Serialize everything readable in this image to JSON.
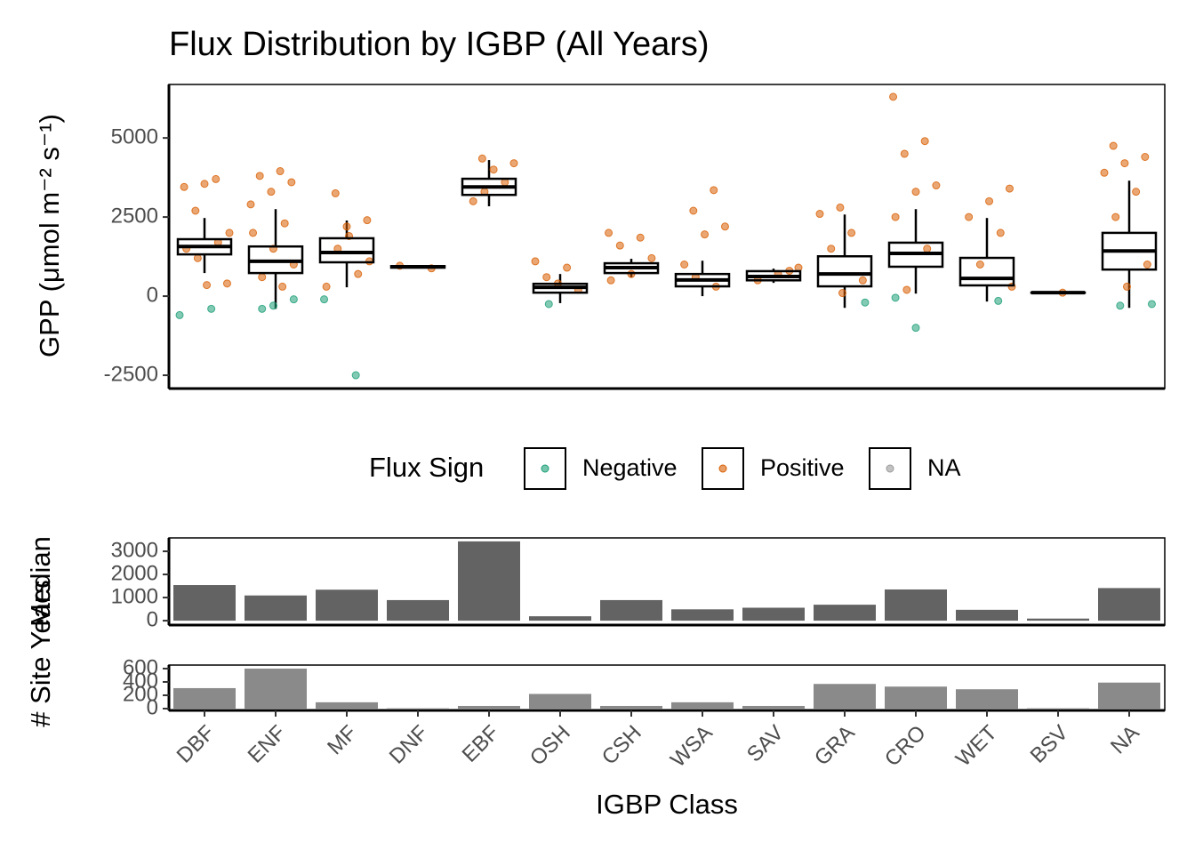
{
  "chart_data": [
    {
      "type": "box",
      "title": "Flux Distribution by IGBP (All Years)",
      "ylabel": "GPP (μmol m⁻² s⁻¹)",
      "ylim": [
        -2920,
        6690
      ],
      "yticks": [
        -2500,
        0,
        2500,
        5000
      ],
      "legend_title": "Flux Sign",
      "boxes": [
        {
          "whisker_low": 730,
          "q1": 1320,
          "median": 1570,
          "q3": 1800,
          "whisker_high": 2470
        },
        {
          "whisker_low": -400,
          "q1": 730,
          "median": 1100,
          "q3": 1570,
          "whisker_high": 2750
        },
        {
          "whisker_low": 280,
          "q1": 1070,
          "median": 1380,
          "q3": 1830,
          "whisker_high": 2390
        },
        {
          "whisker_low": 880,
          "q1": 900,
          "median": 930,
          "q3": 950,
          "whisker_high": 960
        },
        {
          "whisker_low": 2840,
          "q1": 3200,
          "median": 3450,
          "q3": 3710,
          "whisker_high": 4300
        },
        {
          "whisker_low": -220,
          "q1": 110,
          "median": 280,
          "q3": 390,
          "whisker_high": 700
        },
        {
          "whisker_low": 590,
          "q1": 730,
          "median": 900,
          "q3": 1040,
          "whisker_high": 1180
        },
        {
          "whisker_low": 0,
          "q1": 310,
          "median": 510,
          "q3": 700,
          "whisker_high": 1120
        },
        {
          "whisker_low": 420,
          "q1": 500,
          "median": 620,
          "q3": 790,
          "whisker_high": 870
        },
        {
          "whisker_low": -370,
          "q1": 310,
          "median": 700,
          "q3": 1260,
          "whisker_high": 2580
        },
        {
          "whisker_low": 80,
          "q1": 930,
          "median": 1350,
          "q3": 1690,
          "whisker_high": 2750
        },
        {
          "whisker_low": -170,
          "q1": 340,
          "median": 560,
          "q3": 1210,
          "whisker_high": 2470
        },
        {
          "whisker_low": 100,
          "q1": 105,
          "median": 110,
          "q3": 115,
          "whisker_high": 120
        },
        {
          "whisker_low": -370,
          "q1": 840,
          "median": 1430,
          "q3": 2000,
          "whisker_high": 3650
        }
      ],
      "series": [
        {
          "name": "Negative",
          "color": "#1b9e77",
          "x": [
            "DBF",
            "DBF",
            "ENF",
            "ENF",
            "ENF",
            "MF",
            "MF",
            "OSH",
            "GRA",
            "CRO",
            "CRO",
            "WET",
            "NA",
            "NA"
          ],
          "values": [
            -600,
            -400,
            -400,
            -100,
            -300,
            -100,
            -2500,
            -250,
            -200,
            -1000,
            -50,
            -150,
            -300,
            -250
          ]
        },
        {
          "name": "Positive",
          "color": "#d95f02",
          "x": [
            "DBF",
            "DBF",
            "DBF",
            "DBF",
            "DBF",
            "DBF",
            "DBF",
            "DBF",
            "DBF",
            "DBF",
            "ENF",
            "ENF",
            "ENF",
            "ENF",
            "ENF",
            "ENF",
            "ENF",
            "ENF",
            "ENF",
            "ENF",
            "ENF",
            "MF",
            "MF",
            "MF",
            "MF",
            "MF",
            "MF",
            "MF",
            "MF",
            "DNF",
            "DNF",
            "EBF",
            "EBF",
            "EBF",
            "EBF",
            "EBF",
            "EBF",
            "OSH",
            "OSH",
            "OSH",
            "OSH",
            "OSH",
            "CSH",
            "CSH",
            "CSH",
            "CSH",
            "CSH",
            "CSH",
            "WSA",
            "WSA",
            "WSA",
            "WSA",
            "WSA",
            "WSA",
            "WSA",
            "SAV",
            "SAV",
            "SAV",
            "SAV",
            "GRA",
            "GRA",
            "GRA",
            "GRA",
            "GRA",
            "GRA",
            "CRO",
            "CRO",
            "CRO",
            "CRO",
            "CRO",
            "CRO",
            "CRO",
            "CRO",
            "WET",
            "WET",
            "WET",
            "WET",
            "WET",
            "WET",
            "BSV",
            "NA",
            "NA",
            "NA",
            "NA",
            "NA",
            "NA",
            "NA",
            "NA"
          ],
          "values": [
            3550,
            3450,
            3700,
            2700,
            400,
            350,
            1500,
            1700,
            1200,
            2000,
            3950,
            3800,
            3600,
            3300,
            2900,
            300,
            600,
            1000,
            1500,
            2000,
            2300,
            3250,
            2400,
            2200,
            300,
            700,
            1500,
            1100,
            1900,
            960,
            880,
            4350,
            4200,
            4000,
            3000,
            3600,
            3300,
            1100,
            900,
            600,
            200,
            400,
            2000,
            1850,
            1600,
            1200,
            700,
            500,
            3350,
            2700,
            2200,
            1950,
            1000,
            300,
            600,
            900,
            700,
            500,
            800,
            2800,
            2600,
            2000,
            1500,
            500,
            100,
            6300,
            4900,
            4500,
            3500,
            3300,
            2500,
            1500,
            200,
            3400,
            3000,
            2500,
            2000,
            1000,
            300,
            110,
            4750,
            4400,
            4200,
            3900,
            3300,
            2500,
            1000,
            300
          ]
        },
        {
          "name": "NA",
          "color": "#999999",
          "x": [],
          "values": []
        }
      ]
    },
    {
      "type": "bar",
      "ylabel": "Median",
      "color": "#636363",
      "ylim": [
        -190,
        3580
      ],
      "yticks": [
        0,
        1000,
        2000,
        3000
      ],
      "values": [
        1540,
        1090,
        1340,
        890,
        3430,
        190,
        890,
        490,
        560,
        690,
        1350,
        470,
        90,
        1410
      ]
    },
    {
      "type": "bar",
      "ylabel": "# Site Years",
      "xlabel": "IGBP Class",
      "color": "#8a8a8a",
      "ylim": [
        -27,
        653
      ],
      "yticks": [
        0,
        200,
        400,
        600
      ],
      "categories": [
        "DBF",
        "ENF",
        "MF",
        "DNF",
        "EBF",
        "OSH",
        "CSH",
        "WSA",
        "SAV",
        "GRA",
        "CRO",
        "WET",
        "BSV",
        "NA"
      ],
      "values": [
        307,
        600,
        95,
        5,
        40,
        220,
        40,
        95,
        40,
        370,
        330,
        290,
        5,
        390
      ]
    }
  ]
}
